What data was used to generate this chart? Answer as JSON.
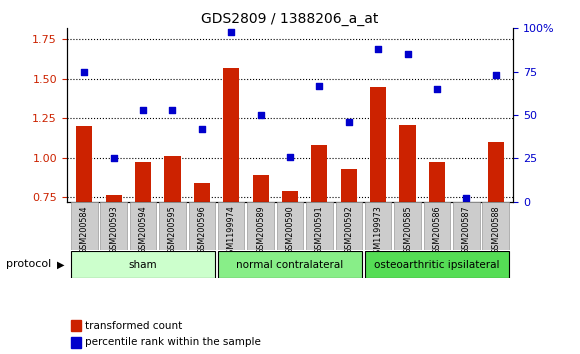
{
  "title": "GDS2809 / 1388206_a_at",
  "samples": [
    "GSM200584",
    "GSM200593",
    "GSM200594",
    "GSM200595",
    "GSM200596",
    "GSM1199974",
    "GSM200589",
    "GSM200590",
    "GSM200591",
    "GSM200592",
    "GSM1199973",
    "GSM200585",
    "GSM200586",
    "GSM200587",
    "GSM200588"
  ],
  "transformed_count": [
    1.2,
    0.76,
    0.97,
    1.01,
    0.84,
    1.57,
    0.89,
    0.79,
    1.08,
    0.93,
    1.45,
    1.21,
    0.97,
    0.72,
    1.1
  ],
  "percentile_rank": [
    75,
    25,
    53,
    53,
    42,
    98,
    50,
    26,
    67,
    46,
    88,
    85,
    65,
    2,
    73
  ],
  "bar_color": "#cc2200",
  "dot_color": "#0000cc",
  "ylim_left": [
    0.72,
    1.82
  ],
  "ylim_right": [
    0,
    100
  ],
  "yticks_left": [
    0.75,
    1.0,
    1.25,
    1.5,
    1.75
  ],
  "yticks_right": [
    0,
    25,
    50,
    75,
    100
  ],
  "groups": [
    {
      "label": "sham",
      "start": 0,
      "end": 4,
      "color": "#ccffcc"
    },
    {
      "label": "normal contralateral",
      "start": 5,
      "end": 9,
      "color": "#88ee88"
    },
    {
      "label": "osteoarthritic ipsilateral",
      "start": 10,
      "end": 14,
      "color": "#55dd55"
    }
  ],
  "tick_bg_color": "#cccccc",
  "tick_box_edge": "#999999"
}
